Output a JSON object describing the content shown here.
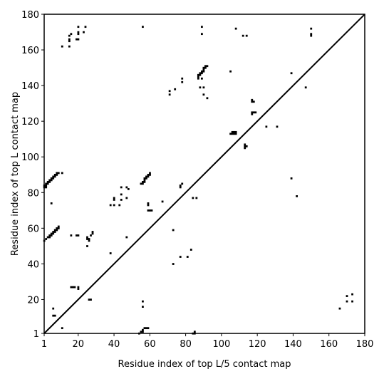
{
  "chart_data": {
    "type": "scatter",
    "title": "",
    "xlabel": "Residue index of top L/5 contact map",
    "ylabel": "Residue index of top L contact map",
    "xlim": [
      1,
      180
    ],
    "ylim": [
      1,
      180
    ],
    "x_ticks": [
      1,
      20,
      40,
      60,
      80,
      100,
      120,
      140,
      160,
      180
    ],
    "y_ticks": [
      1,
      20,
      40,
      60,
      80,
      100,
      120,
      140,
      160,
      180
    ],
    "diagonal": [
      [
        1,
        1
      ],
      [
        180,
        180
      ]
    ],
    "grid": false,
    "legend": "none",
    "marker": "square",
    "marker_color": "#000000",
    "series": [
      {
        "points": [
          [
            1,
            84
          ],
          [
            2,
            84
          ],
          [
            2,
            85
          ],
          [
            3,
            85
          ],
          [
            3,
            86
          ],
          [
            4,
            86
          ],
          [
            4,
            87
          ],
          [
            5,
            87
          ],
          [
            5,
            88
          ],
          [
            6,
            88
          ],
          [
            6,
            89
          ],
          [
            7,
            89
          ],
          [
            7,
            90
          ],
          [
            8,
            90
          ],
          [
            8,
            91
          ],
          [
            9,
            91
          ],
          [
            1,
            83
          ],
          [
            2,
            83
          ],
          [
            1,
            53
          ],
          [
            2,
            54
          ],
          [
            3,
            55
          ],
          [
            4,
            55
          ],
          [
            4,
            56
          ],
          [
            5,
            56
          ],
          [
            5,
            57
          ],
          [
            6,
            57
          ],
          [
            6,
            58
          ],
          [
            7,
            58
          ],
          [
            7,
            59
          ],
          [
            8,
            59
          ],
          [
            8,
            60
          ],
          [
            9,
            60
          ],
          [
            9,
            61
          ],
          [
            5,
            74
          ],
          [
            11,
            91
          ],
          [
            16,
            56
          ],
          [
            19,
            56
          ],
          [
            20,
            56
          ],
          [
            25,
            55
          ],
          [
            25,
            54
          ],
          [
            26,
            54
          ],
          [
            26,
            53
          ],
          [
            25,
            50
          ],
          [
            27,
            56
          ],
          [
            28,
            57
          ],
          [
            28,
            58
          ],
          [
            6,
            15
          ],
          [
            6,
            11
          ],
          [
            7,
            11
          ],
          [
            11,
            4
          ],
          [
            16,
            27
          ],
          [
            17,
            27
          ],
          [
            18,
            27
          ],
          [
            20,
            26
          ],
          [
            20,
            27
          ],
          [
            26,
            20
          ],
          [
            27,
            20
          ],
          [
            11,
            162
          ],
          [
            15,
            162
          ],
          [
            15,
            165
          ],
          [
            15,
            166
          ],
          [
            15,
            168
          ],
          [
            16,
            169
          ],
          [
            19,
            166
          ],
          [
            20,
            166
          ],
          [
            20,
            169
          ],
          [
            20,
            170
          ],
          [
            20,
            173
          ],
          [
            23,
            170
          ],
          [
            24,
            173
          ],
          [
            38,
            46
          ],
          [
            38,
            73
          ],
          [
            40,
            73
          ],
          [
            40,
            76
          ],
          [
            40,
            77
          ],
          [
            43,
            73
          ],
          [
            44,
            76
          ],
          [
            44,
            79
          ],
          [
            44,
            83
          ],
          [
            47,
            77
          ],
          [
            47,
            83
          ],
          [
            48,
            82
          ],
          [
            47,
            55
          ],
          [
            55,
            85
          ],
          [
            56,
            85
          ],
          [
            56,
            86
          ],
          [
            57,
            86
          ],
          [
            57,
            87
          ],
          [
            57,
            88
          ],
          [
            58,
            88
          ],
          [
            58,
            89
          ],
          [
            59,
            89
          ],
          [
            59,
            90
          ],
          [
            60,
            90
          ],
          [
            60,
            91
          ],
          [
            59,
            74
          ],
          [
            59,
            73
          ],
          [
            59,
            70
          ],
          [
            60,
            70
          ],
          [
            61,
            70
          ],
          [
            67,
            75
          ],
          [
            71,
            135
          ],
          [
            71,
            137
          ],
          [
            73,
            59
          ],
          [
            73,
            40
          ],
          [
            74,
            138
          ],
          [
            77,
            83
          ],
          [
            77,
            84
          ],
          [
            78,
            85
          ],
          [
            78,
            142
          ],
          [
            78,
            144
          ],
          [
            77,
            44
          ],
          [
            81,
            44
          ],
          [
            83,
            48
          ],
          [
            84,
            77
          ],
          [
            86,
            77
          ],
          [
            56,
            173
          ],
          [
            56,
            16
          ],
          [
            56,
            19
          ],
          [
            54,
            1
          ],
          [
            55,
            2
          ],
          [
            56,
            2
          ],
          [
            56,
            3
          ],
          [
            57,
            4
          ],
          [
            58,
            4
          ],
          [
            59,
            4
          ],
          [
            84,
            1
          ],
          [
            85,
            1
          ],
          [
            85,
            2
          ],
          [
            87,
            144
          ],
          [
            87,
            145
          ],
          [
            87,
            146
          ],
          [
            88,
            146
          ],
          [
            88,
            147
          ],
          [
            89,
            147
          ],
          [
            89,
            148
          ],
          [
            90,
            148
          ],
          [
            90,
            149
          ],
          [
            90,
            150
          ],
          [
            91,
            150
          ],
          [
            91,
            151
          ],
          [
            92,
            151
          ],
          [
            89,
            144
          ],
          [
            89,
            169
          ],
          [
            89,
            173
          ],
          [
            88,
            139
          ],
          [
            90,
            139
          ],
          [
            90,
            135
          ],
          [
            92,
            133
          ],
          [
            105,
            148
          ],
          [
            105,
            113
          ],
          [
            106,
            113
          ],
          [
            107,
            113
          ],
          [
            107,
            114
          ],
          [
            108,
            113
          ],
          [
            108,
            114
          ],
          [
            106,
            114
          ],
          [
            108,
            172
          ],
          [
            112,
            168
          ],
          [
            114,
            168
          ],
          [
            113,
            105
          ],
          [
            113,
            106
          ],
          [
            113,
            107
          ],
          [
            114,
            106
          ],
          [
            117,
            124
          ],
          [
            117,
            125
          ],
          [
            118,
            125
          ],
          [
            119,
            125
          ],
          [
            117,
            131
          ],
          [
            117,
            132
          ],
          [
            118,
            131
          ],
          [
            125,
            117
          ],
          [
            131,
            117
          ],
          [
            139,
            147
          ],
          [
            139,
            88
          ],
          [
            142,
            78
          ],
          [
            147,
            139
          ],
          [
            150,
            168
          ],
          [
            150,
            169
          ],
          [
            150,
            172
          ],
          [
            166,
            15
          ],
          [
            170,
            19
          ],
          [
            170,
            22
          ],
          [
            173,
            19
          ],
          [
            173,
            23
          ]
        ]
      }
    ]
  }
}
